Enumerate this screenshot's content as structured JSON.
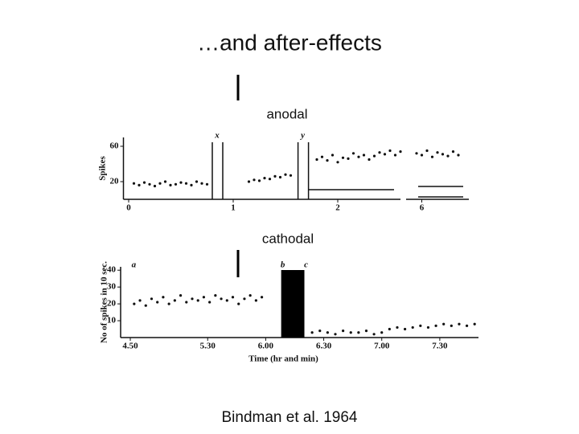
{
  "title": "…and after-effects",
  "citation": "Bindman et al. 1964",
  "chart_data": [
    {
      "type": "scatter",
      "ylabel": "Spikes",
      "label": "anodal",
      "label_color": "#c0140c",
      "xlim": [
        -0.05,
        6.45
      ],
      "x_break": [
        2.6,
        5.85
      ],
      "xticks": [
        0,
        1,
        2,
        6
      ],
      "ylim": [
        0,
        70
      ],
      "yticks": [
        20,
        60
      ],
      "series": [
        {
          "color": "#111111",
          "x": [
            0.05,
            0.1,
            0.15,
            0.2,
            0.25,
            0.3,
            0.35,
            0.4,
            0.45,
            0.5,
            0.55,
            0.6,
            0.65,
            0.7,
            0.75,
            1.15,
            1.2,
            1.25,
            1.3,
            1.35,
            1.4,
            1.45,
            1.5,
            1.55,
            1.8,
            1.85,
            1.9,
            1.95,
            2.0,
            2.05,
            2.1,
            2.15,
            2.2,
            2.25,
            2.3,
            2.35,
            2.4,
            2.45,
            2.5,
            2.55,
            2.6,
            5.95,
            6.0,
            6.05,
            6.1,
            6.15,
            6.2,
            6.25,
            6.3,
            6.35
          ],
          "values": [
            18,
            16,
            19,
            17,
            15,
            18,
            20,
            16,
            17,
            19,
            18,
            16,
            20,
            18,
            17,
            20,
            22,
            21,
            24,
            23,
            26,
            25,
            28,
            27,
            45,
            48,
            44,
            50,
            42,
            47,
            46,
            52,
            48,
            50,
            45,
            49,
            53,
            51,
            55,
            50,
            54,
            52,
            50,
            55,
            48,
            53,
            51,
            49,
            54,
            50
          ]
        }
      ],
      "markers": [
        {
          "label": "x",
          "x": [
            0.8,
            0.9
          ]
        },
        {
          "label": "y",
          "x": [
            1.62,
            1.72
          ]
        }
      ]
    },
    {
      "type": "scatter",
      "xlabel": "Time (hr and min)",
      "ylabel": "No of spikes in 10 sec.",
      "label": "cathodal",
      "label_color": "#1a1aa0",
      "xlim": [
        285,
        470
      ],
      "xticks": [
        {
          "value": 290,
          "label": "4.50"
        },
        {
          "value": 330,
          "label": "5.30"
        },
        {
          "value": 360,
          "label": "6.00"
        },
        {
          "value": 390,
          "label": "6.30"
        },
        {
          "value": 420,
          "label": "7.00"
        },
        {
          "value": 450,
          "label": "7.30"
        }
      ],
      "ylim": [
        0,
        42
      ],
      "yticks": [
        10,
        20,
        30,
        40
      ],
      "series": [
        {
          "color": "#111111",
          "x": [
            292,
            295,
            298,
            301,
            304,
            307,
            310,
            313,
            316,
            319,
            322,
            325,
            328,
            331,
            334,
            337,
            340,
            343,
            346,
            349,
            352,
            355,
            358,
            384,
            388,
            392,
            396,
            400,
            404,
            408,
            412,
            416,
            420,
            424,
            428,
            432,
            436,
            440,
            444,
            448,
            452,
            456,
            460,
            464,
            468
          ],
          "values": [
            20,
            22,
            19,
            23,
            21,
            24,
            20,
            22,
            25,
            21,
            23,
            22,
            24,
            21,
            25,
            23,
            22,
            24,
            20,
            23,
            25,
            22,
            24,
            3,
            4,
            3,
            2,
            4,
            3,
            3,
            4,
            2,
            3,
            5,
            6,
            5,
            6,
            7,
            6,
            7,
            8,
            7,
            8,
            7,
            8
          ]
        }
      ],
      "stim_bar": [
        368,
        380
      ],
      "markers": [
        {
          "label": "a",
          "x": [
            291
          ]
        },
        {
          "label": "b",
          "x": [
            368
          ]
        },
        {
          "label": "c",
          "x": [
            380
          ]
        }
      ]
    }
  ]
}
